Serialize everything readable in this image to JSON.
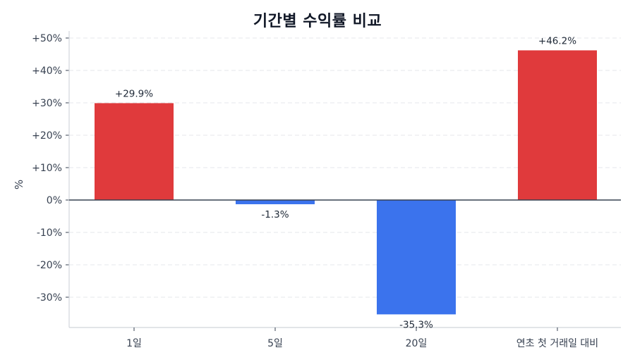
{
  "chart_data": {
    "type": "bar",
    "title": "기간별 수익률 비교",
    "xlabel": "",
    "ylabel": "%",
    "categories": [
      "1일",
      "5일",
      "20일",
      "연초 첫 거래일 대비"
    ],
    "values": [
      29.9,
      -1.3,
      -35.3,
      46.2
    ],
    "data_labels": [
      "+29.9%",
      "-1.3%",
      "-35.3%",
      "+46.2%"
    ],
    "ylim": [
      -39.3,
      51.5
    ],
    "yticks": [
      50,
      40,
      30,
      20,
      10,
      0,
      -10,
      -20,
      -30
    ],
    "ytick_labels": [
      "+50%",
      "+40%",
      "+30%",
      "+20%",
      "+10%",
      "0%",
      "-10%",
      "-20%",
      "-30%"
    ],
    "grid": "horizontal dashed",
    "legend": "none",
    "colors": {
      "positive": "#e03a3c",
      "negative": "#3b73ed",
      "zero_line": "#374151",
      "grid": "#e5e7eb",
      "axis": "#d1d5db"
    }
  },
  "title": "기간별 수익률 비교",
  "ylabel": "%"
}
